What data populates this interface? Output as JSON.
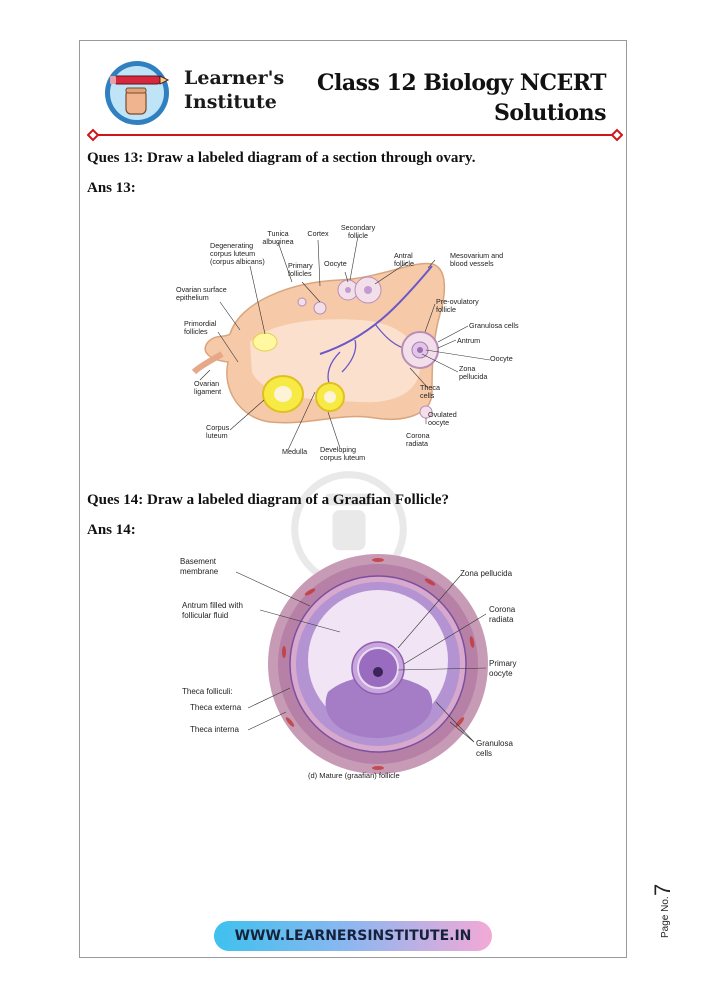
{
  "header": {
    "brand_line1": "Learner's",
    "brand_line2": "Institute",
    "title_line1": "Class 12 Biology NCERT",
    "title_line2": "Solutions"
  },
  "q13": {
    "question": "Ques 13: Draw a labeled diagram of a section through ovary.",
    "answer": "Ans 13:",
    "labels": {
      "secondary": "Secondary",
      "follicle": "follicle",
      "tunica1": "Tunica",
      "tunica2": "albuginea",
      "cortex": "Cortex",
      "degen1": "Degenerating",
      "degen2": "corpus luteum",
      "degen3": "(corpus albicans)",
      "primary1": "Primary",
      "primary2": "follicles",
      "oocyte_top": "Oocyte",
      "antral1": "Antral",
      "antral2": "follicle",
      "meso1": "Mesovarium and",
      "meso2": "blood vessels",
      "surface1": "Ovarian surface",
      "surface2": "epithelium",
      "preov1": "Pre-ovulatory",
      "preov2": "follicle",
      "primordial1": "Primordial",
      "primordial2": "follicles",
      "granulosa": "Granulosa cells",
      "antrum": "Antrum",
      "oocyte_right": "Oocyte",
      "zona1": "Zona",
      "zona2": "pellucida",
      "ligament1": "Ovarian",
      "ligament2": "ligament",
      "theca1": "Theca",
      "theca2": "cells",
      "ovulated1": "Ovulated",
      "ovulated2": "oocyte",
      "corpus1": "Corpus",
      "corpus2": "luteum",
      "corona1": "Corona",
      "corona2": "radiata",
      "medulla": "Medulla",
      "developing1": "Developing",
      "developing2": "corpus luteum"
    }
  },
  "q14": {
    "question": "Ques 14: Draw a labeled diagram of a Graafian Follicle?",
    "answer": "Ans 14:",
    "labels": {
      "basement1": "Basement",
      "basement2": "membrane",
      "antrum1": "Antrum filled with",
      "antrum2": "follicular fluid",
      "zona": "Zona pellucida",
      "corona1": "Corona",
      "corona2": "radiata",
      "primary1": "Primary",
      "primary2": "oocyte",
      "theca_folliculi": "Theca folliculi:",
      "theca_externa": "Theca externa",
      "theca_interna": "Theca interna",
      "granulosa1": "Granulosa",
      "granulosa2": "cells",
      "caption": "(d) Mature (graafian) follicle"
    }
  },
  "footer": {
    "url": "WWW.LEARNERSINSTITUTE.IN"
  },
  "page": {
    "label": "Page No.",
    "number": "7"
  },
  "colors": {
    "rule": "#d0151b",
    "ovary": "#f6c9a8",
    "follicle": "#a785c4",
    "footer_start": "#3ec1ee",
    "footer_end": "#f3a9d6"
  }
}
